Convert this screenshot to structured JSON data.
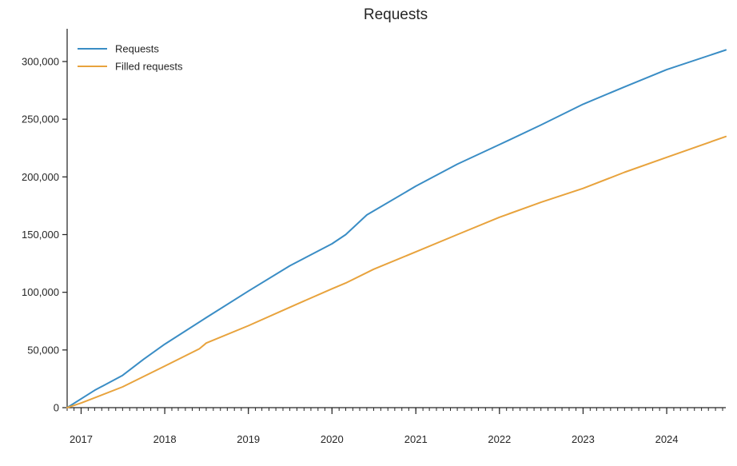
{
  "chart_data": {
    "type": "line",
    "title": "Requests",
    "xlabel": "",
    "ylabel": "",
    "x_axis": {
      "type": "date",
      "range": [
        "2016-11-01",
        "2024-09-15"
      ],
      "major_ticks": [
        {
          "label": "2017",
          "date": "2017-01-01"
        },
        {
          "label": "2018",
          "date": "2018-01-01"
        },
        {
          "label": "2019",
          "date": "2019-01-01"
        },
        {
          "label": "2020",
          "date": "2020-01-01"
        },
        {
          "label": "2021",
          "date": "2021-01-01"
        },
        {
          "label": "2022",
          "date": "2022-01-01"
        },
        {
          "label": "2023",
          "date": "2023-01-01"
        },
        {
          "label": "2024",
          "date": "2024-01-01"
        }
      ],
      "minor_ticks": "monthly"
    },
    "y_axis": {
      "range": [
        0,
        327000
      ],
      "ticks": [
        {
          "value": 0,
          "label": "0"
        },
        {
          "value": 50000,
          "label": "50,000"
        },
        {
          "value": 100000,
          "label": "100,000"
        },
        {
          "value": 150000,
          "label": "150,000"
        },
        {
          "value": 200000,
          "label": "200,000"
        },
        {
          "value": 250000,
          "label": "250,000"
        },
        {
          "value": 300000,
          "label": "300,000"
        }
      ]
    },
    "grid": false,
    "legend": {
      "placement": "top-left"
    },
    "series": [
      {
        "name": "Requests",
        "color": "#3a8dc5",
        "points": [
          [
            "2016-11-01",
            0
          ],
          [
            "2017-03-01",
            15000
          ],
          [
            "2017-07-01",
            28000
          ],
          [
            "2017-10-01",
            42000
          ],
          [
            "2018-01-01",
            55000
          ],
          [
            "2018-07-01",
            78000
          ],
          [
            "2019-01-01",
            101000
          ],
          [
            "2019-07-01",
            123000
          ],
          [
            "2020-01-01",
            142000
          ],
          [
            "2020-03-01",
            150000
          ],
          [
            "2020-06-01",
            167000
          ],
          [
            "2021-01-01",
            192000
          ],
          [
            "2021-07-01",
            211000
          ],
          [
            "2022-01-01",
            228000
          ],
          [
            "2022-07-01",
            245000
          ],
          [
            "2023-01-01",
            263000
          ],
          [
            "2023-07-01",
            278000
          ],
          [
            "2024-01-01",
            293000
          ],
          [
            "2024-09-15",
            310000
          ]
        ]
      },
      {
        "name": "Filled requests",
        "color": "#e8a33d",
        "points": [
          [
            "2016-11-01",
            0
          ],
          [
            "2017-01-01",
            4000
          ],
          [
            "2017-07-01",
            18000
          ],
          [
            "2018-01-01",
            36000
          ],
          [
            "2018-06-01",
            51000
          ],
          [
            "2018-07-01",
            56000
          ],
          [
            "2019-01-01",
            71000
          ],
          [
            "2019-07-01",
            87000
          ],
          [
            "2020-01-01",
            103000
          ],
          [
            "2020-03-01",
            108000
          ],
          [
            "2020-07-01",
            120000
          ],
          [
            "2021-01-01",
            135000
          ],
          [
            "2021-07-01",
            150000
          ],
          [
            "2022-01-01",
            165000
          ],
          [
            "2022-07-01",
            178000
          ],
          [
            "2023-01-01",
            190000
          ],
          [
            "2023-07-01",
            204000
          ],
          [
            "2024-01-01",
            217000
          ],
          [
            "2024-09-15",
            235000
          ]
        ]
      }
    ]
  }
}
